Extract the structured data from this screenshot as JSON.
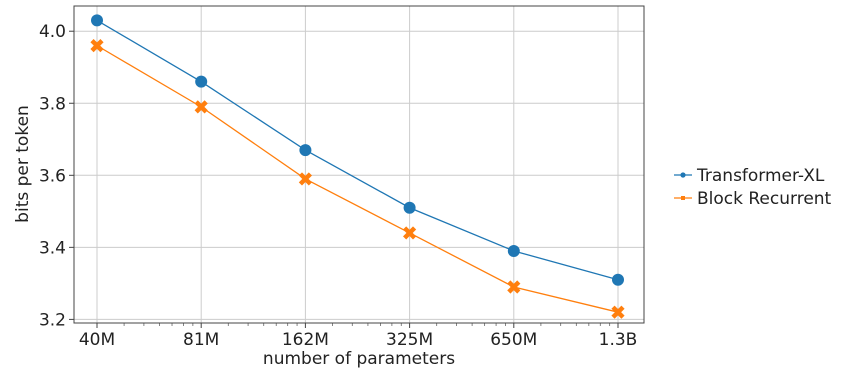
{
  "chart_data": {
    "type": "line",
    "title": "",
    "xlabel": "number of parameters",
    "ylabel": "bits per token",
    "categories": [
      "40M",
      "81M",
      "162M",
      "325M",
      "650M",
      "1.3B"
    ],
    "yticks": [
      "3.2",
      "3.4",
      "3.6",
      "3.8",
      "4.0"
    ],
    "ylim": [
      3.19,
      4.07
    ],
    "grid": true,
    "legend_position": "right",
    "series": [
      {
        "name": "Transformer-XL",
        "values": [
          4.03,
          3.86,
          3.67,
          3.51,
          3.39,
          3.31
        ],
        "color": "#1f77b4",
        "marker": "circle"
      },
      {
        "name": "Block Recurrent",
        "values": [
          3.96,
          3.79,
          3.59,
          3.44,
          3.29,
          3.22
        ],
        "color": "#ff7f0e",
        "marker": "x"
      }
    ]
  }
}
